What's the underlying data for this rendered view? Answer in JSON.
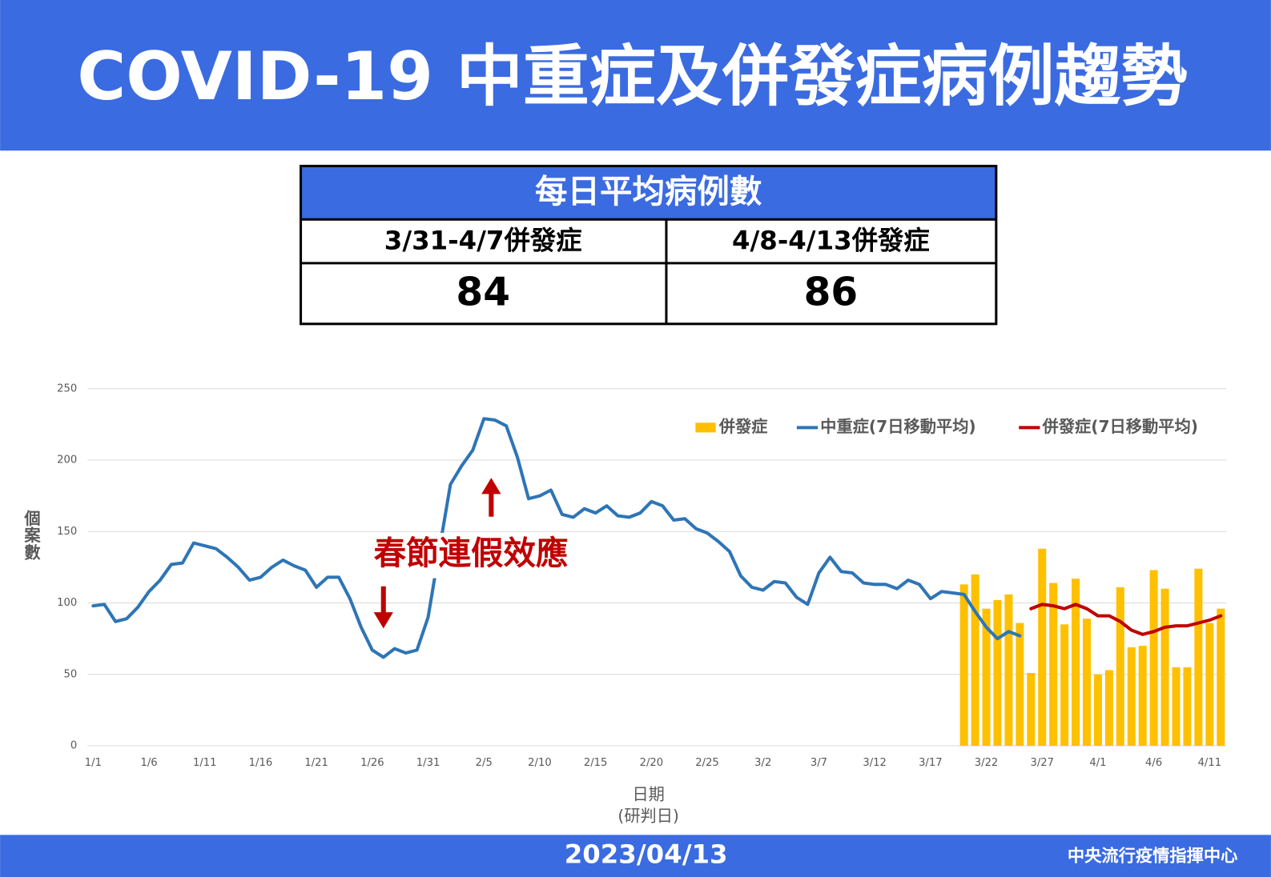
{
  "header": {
    "title": "COVID-19 中重症及併發症病例趨勢"
  },
  "table": {
    "title": "每日平均病例數",
    "headers": [
      "3/31-4/7併發症",
      "4/8-4/13併發症"
    ],
    "values": [
      84,
      86
    ]
  },
  "chart_data": {
    "type": "combo",
    "ylabel": "個案數",
    "xlabel": [
      "日期",
      "(研判日)"
    ],
    "annotation": "春節連假效應",
    "categories": [
      "1/1",
      null,
      null,
      null,
      null,
      "1/6",
      null,
      null,
      null,
      null,
      "1/11",
      null,
      null,
      null,
      null,
      "1/16",
      null,
      null,
      null,
      null,
      "1/21",
      null,
      null,
      null,
      null,
      "1/26",
      null,
      null,
      null,
      null,
      "1/31",
      null,
      null,
      null,
      null,
      "2/5",
      null,
      null,
      null,
      null,
      "2/10",
      null,
      null,
      null,
      null,
      "2/15",
      null,
      null,
      null,
      null,
      "2/20",
      null,
      null,
      null,
      null,
      "2/25",
      null,
      null,
      null,
      null,
      "3/2",
      null,
      null,
      null,
      null,
      "3/7",
      null,
      null,
      null,
      null,
      "3/12",
      null,
      null,
      null,
      null,
      "3/17",
      null,
      null,
      null,
      null,
      "3/22",
      null,
      null,
      null,
      null,
      "3/27",
      null,
      null,
      null,
      null,
      "4/1",
      null,
      null,
      null,
      null,
      "4/6",
      null,
      null,
      null,
      null,
      "4/11",
      null
    ],
    "series": [
      {
        "name": "併發症",
        "type": "bar",
        "color": "#ffc000",
        "values": [
          null,
          null,
          null,
          null,
          null,
          null,
          null,
          null,
          null,
          null,
          null,
          null,
          null,
          null,
          null,
          null,
          null,
          null,
          null,
          null,
          null,
          null,
          null,
          null,
          null,
          null,
          null,
          null,
          null,
          null,
          null,
          null,
          null,
          null,
          null,
          null,
          null,
          null,
          null,
          null,
          null,
          null,
          null,
          null,
          null,
          null,
          null,
          null,
          null,
          null,
          null,
          null,
          null,
          null,
          null,
          null,
          null,
          null,
          null,
          null,
          null,
          null,
          null,
          null,
          null,
          null,
          null,
          null,
          null,
          null,
          null,
          null,
          null,
          null,
          null,
          null,
          null,
          null,
          113,
          120,
          96,
          102,
          106,
          86,
          51,
          138,
          114,
          85,
          117,
          89,
          50,
          53,
          111,
          69,
          70,
          123,
          110,
          55,
          55,
          124,
          86,
          96
        ]
      },
      {
        "name": "中重症(7日移動平均)",
        "type": "line",
        "color": "#2e75b6",
        "values": [
          98,
          99,
          87,
          89,
          97,
          108,
          116,
          127,
          128,
          142,
          140,
          138,
          132,
          125,
          116,
          118,
          125,
          130,
          126,
          123,
          111,
          118,
          118,
          103,
          83,
          67,
          62,
          68,
          65,
          67,
          90,
          137,
          183,
          196,
          207,
          229,
          228,
          224,
          202,
          173,
          175,
          179,
          162,
          160,
          166,
          163,
          168,
          161,
          160,
          163,
          171,
          168,
          158,
          159,
          152,
          149,
          143,
          136,
          119,
          111,
          109,
          115,
          114,
          104,
          99,
          121,
          132,
          122,
          121,
          114,
          113,
          113,
          110,
          116,
          113,
          103,
          108,
          107,
          106,
          94,
          83,
          75,
          80,
          77,
          null,
          null,
          null,
          null,
          null,
          null,
          null,
          null,
          null,
          null,
          null,
          null,
          null,
          null,
          null,
          null,
          null,
          null
        ]
      },
      {
        "name": "併發症(7日移動平均)",
        "type": "line",
        "color": "#c00000",
        "values": [
          null,
          null,
          null,
          null,
          null,
          null,
          null,
          null,
          null,
          null,
          null,
          null,
          null,
          null,
          null,
          null,
          null,
          null,
          null,
          null,
          null,
          null,
          null,
          null,
          null,
          null,
          null,
          null,
          null,
          null,
          null,
          null,
          null,
          null,
          null,
          null,
          null,
          null,
          null,
          null,
          null,
          null,
          null,
          null,
          null,
          null,
          null,
          null,
          null,
          null,
          null,
          null,
          null,
          null,
          null,
          null,
          null,
          null,
          null,
          null,
          null,
          null,
          null,
          null,
          null,
          null,
          null,
          null,
          null,
          null,
          null,
          null,
          null,
          null,
          null,
          null,
          null,
          null,
          null,
          null,
          null,
          null,
          null,
          null,
          96,
          99,
          98,
          96,
          99,
          96,
          91,
          91,
          87,
          81,
          78,
          80,
          83,
          84,
          84,
          86,
          88,
          91
        ]
      }
    ],
    "ylim": [
      0,
      250
    ],
    "yticks": [
      0,
      50,
      100,
      150,
      200,
      250
    ],
    "grid": true,
    "legend": "top-right"
  },
  "footer": {
    "date": "2023/04/13",
    "org": "中央流行疫情指揮中心"
  }
}
